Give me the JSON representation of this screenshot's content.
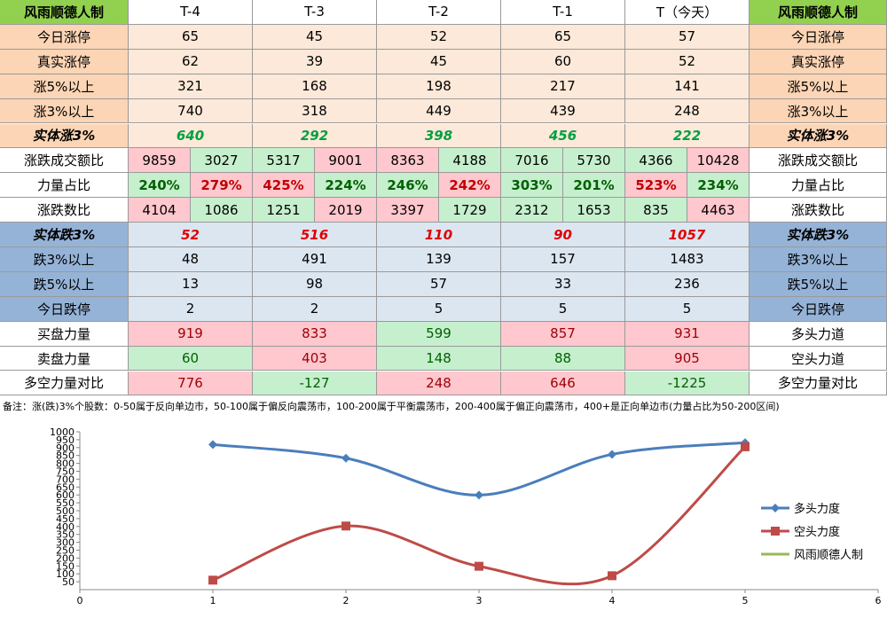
{
  "table": {
    "header": [
      "风雨顺德人制",
      "T-4",
      "T-3",
      "T-2",
      "T-1",
      "T（今天）",
      "风雨顺德人制"
    ],
    "rows": [
      {
        "label": "今日涨停",
        "values": [
          65,
          45,
          52,
          65,
          57
        ],
        "right": "今日涨停"
      },
      {
        "label": "真实涨停",
        "values": [
          62,
          39,
          45,
          60,
          52
        ],
        "right": "真实涨停"
      },
      {
        "label": "涨5%以上",
        "values": [
          321,
          168,
          198,
          217,
          141
        ],
        "right": "涨5%以上"
      },
      {
        "label": "涨3%以上",
        "values": [
          740,
          318,
          449,
          439,
          248
        ],
        "right": "涨3%以上"
      },
      {
        "label": "实体涨3%",
        "values": [
          640,
          292,
          398,
          456,
          222
        ],
        "right": "实体涨3%"
      },
      {
        "label": "涨跌成交额比",
        "values": [
          9859,
          3027,
          5317,
          9001,
          8363,
          4188,
          7016,
          5730,
          4366,
          10428
        ],
        "right": "涨跌成交额比"
      },
      {
        "label": "力量占比",
        "values": [
          "240%",
          "279%",
          "425%",
          "224%",
          "246%",
          "242%",
          "303%",
          "201%",
          "523%",
          "234%"
        ],
        "right": "力量占比"
      },
      {
        "label": "涨跌数比",
        "values": [
          4104,
          1086,
          1251,
          2019,
          3397,
          1729,
          2312,
          1653,
          835,
          4463
        ],
        "right": "涨跌数比"
      },
      {
        "label": "实体跌3%",
        "values": [
          52,
          516,
          110,
          90,
          1057
        ],
        "right": "实体跌3%"
      },
      {
        "label": "跌3%以上",
        "values": [
          48,
          491,
          139,
          157,
          1483
        ],
        "right": "跌3%以上"
      },
      {
        "label": "跌5%以上",
        "values": [
          13,
          98,
          57,
          33,
          236
        ],
        "right": "跌5%以上"
      },
      {
        "label": "今日跌停",
        "values": [
          2,
          2,
          5,
          5,
          5
        ],
        "right": "今日跌停"
      },
      {
        "label": "买盘力量",
        "values": [
          919,
          833,
          599,
          857,
          931
        ],
        "right": "多头力道"
      },
      {
        "label": "卖盘力量",
        "values": [
          60,
          403,
          148,
          88,
          905
        ],
        "right": "空头力道"
      },
      {
        "label": "多空力量对比",
        "values": [
          776,
          -127,
          248,
          646,
          -1225
        ],
        "right": "多空力量对比"
      }
    ],
    "note": "备注：涨(跌)3%个股数：0-50属于反向单边市，50-100属于偏反向震荡市，100-200属于平衡震荡市，200-400属于偏正向震荡市，400+是正向单边市(力量占比为50-200区间)"
  },
  "chart_data": {
    "type": "line",
    "x": [
      1,
      2,
      3,
      4,
      5
    ],
    "series": [
      {
        "name": "多头力度",
        "color": "#4a7ebb",
        "values": [
          919,
          833,
          599,
          857,
          931
        ]
      },
      {
        "name": "空头力度",
        "color": "#be4b48",
        "values": [
          60,
          403,
          148,
          88,
          905
        ]
      },
      {
        "name": "风雨顺德人制",
        "color": "#98b954",
        "values": [
          null,
          null,
          null,
          null,
          null
        ]
      }
    ],
    "xlim": [
      0,
      6
    ],
    "xticks": [
      0,
      1,
      2,
      3,
      4,
      5,
      6
    ],
    "ylim": [
      0,
      1000
    ],
    "yticks": [
      50,
      100,
      150,
      200,
      250,
      300,
      350,
      400,
      450,
      500,
      550,
      600,
      650,
      700,
      750,
      800,
      850,
      900,
      950,
      1000
    ],
    "grid": false,
    "legend": "right"
  }
}
